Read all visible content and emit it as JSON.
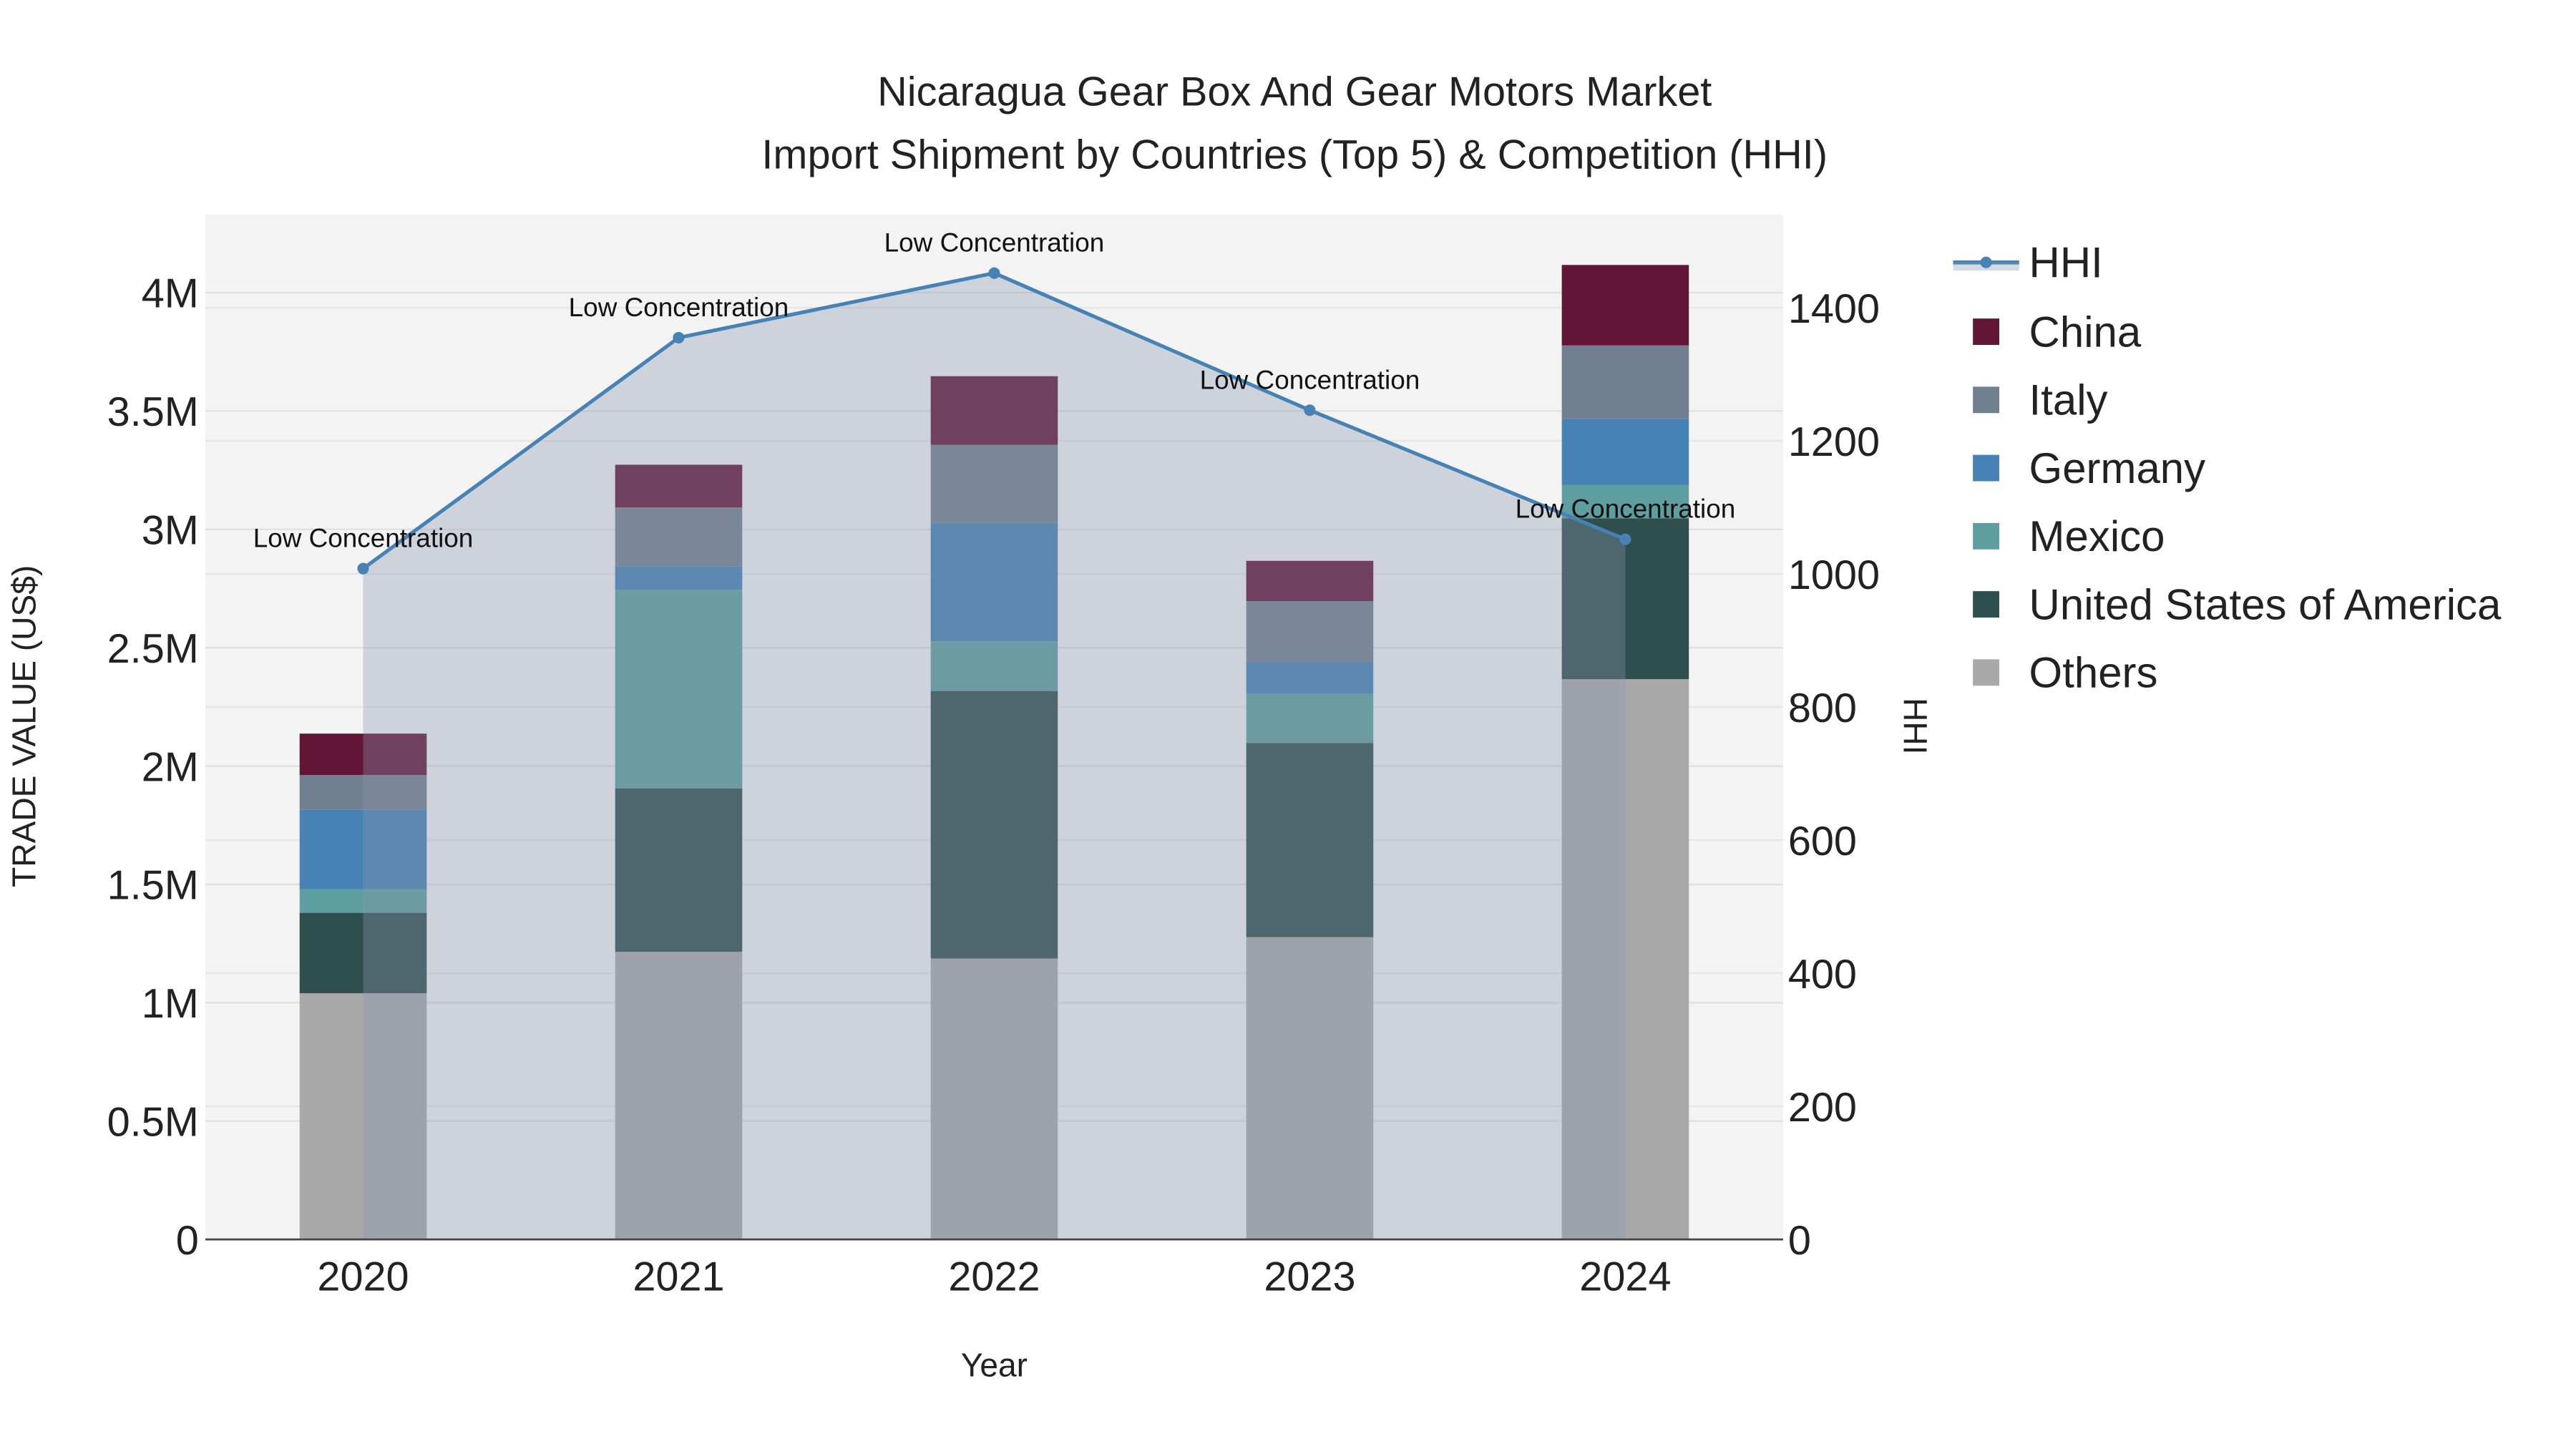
{
  "chart_data": {
    "type": "bar",
    "title_line1": "Nicaragua Gear Box And Gear Motors Market",
    "title_line2": "Import Shipment by Countries (Top 5) & Competition (HHI)",
    "xlabel": "Year",
    "ylabel": "TRADE VALUE (US$)",
    "y2label": "HHI",
    "categories": [
      "2020",
      "2021",
      "2022",
      "2023",
      "2024"
    ],
    "ylim": [
      0,
      4330000
    ],
    "y2lim": [
      0,
      1540
    ],
    "yticks": [
      0,
      500000,
      1000000,
      1500000,
      2000000,
      2500000,
      3000000,
      3500000,
      4000000
    ],
    "ytick_labels": [
      "0",
      "0.5M",
      "1M",
      "1.5M",
      "2M",
      "2.5M",
      "3M",
      "3.5M",
      "4M"
    ],
    "y2ticks": [
      0,
      200,
      400,
      600,
      800,
      1000,
      1200,
      1400
    ],
    "y2tick_labels": [
      "0",
      "200",
      "400",
      "600",
      "800",
      "1000",
      "1200",
      "1400"
    ],
    "series": [
      {
        "name": "Others",
        "color": "#A9A9A9",
        "values": [
          1040000,
          1215000,
          1187000,
          1277000,
          2367000
        ]
      },
      {
        "name": "United States of America",
        "color": "#2F4F4F",
        "values": [
          340000,
          690000,
          1130000,
          820000,
          680000
        ]
      },
      {
        "name": "Mexico",
        "color": "#5F9EA0",
        "values": [
          100000,
          840000,
          210000,
          210000,
          140000
        ]
      },
      {
        "name": "Germany",
        "color": "#4682B4",
        "values": [
          335000,
          98000,
          500000,
          130000,
          280000
        ]
      },
      {
        "name": "Italy",
        "color": "#708090",
        "values": [
          147000,
          250000,
          330000,
          260000,
          310000
        ]
      },
      {
        "name": "China",
        "color": "#631536",
        "values": [
          175000,
          180000,
          290000,
          170000,
          340000
        ]
      }
    ],
    "hhi": {
      "name": "HHI",
      "color": "#4682B4",
      "values": [
        1008,
        1355,
        1452,
        1246,
        1052
      ],
      "annotations": [
        "Low Concentration",
        "Low Concentration",
        "Low Concentration",
        "Low Concentration",
        "Low Concentration"
      ]
    },
    "legend_order": [
      "HHI",
      "China",
      "Italy",
      "Germany",
      "Mexico",
      "United States of America",
      "Others"
    ],
    "legend_placement": "right",
    "grid": true
  }
}
